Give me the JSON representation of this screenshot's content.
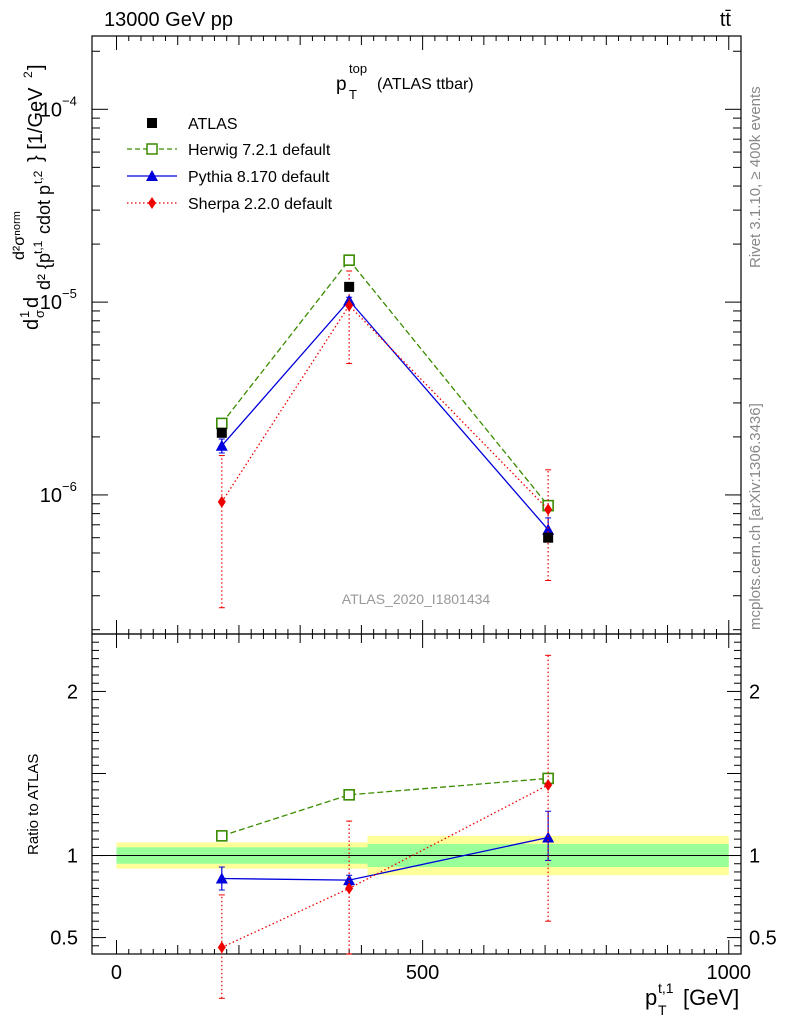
{
  "header": {
    "left": "13000 GeV pp",
    "right": "tt̄"
  },
  "title": {
    "main": "p",
    "sub": "T",
    "sup": "top",
    "suffix": "(ATLAS ttbar)"
  },
  "side": {
    "rivet": "Rivet 3.1.10, ≥ 400k events",
    "mcplots": "mcplots.cern.ch [arXiv:1306.3436]"
  },
  "analysis_id": "ATLAS_2020_I1801434",
  "colors": {
    "atlas": "#000000",
    "herwig": "#3a8c00",
    "pythia": "#0000dd",
    "sherpa": "#ee0000",
    "band_inner": "#99ff99",
    "band_outer": "#ffff99"
  },
  "chart_data": [
    {
      "type": "scatter",
      "panel": "main",
      "yscale": "log",
      "ylabel": "d²σ/(d p_T^{t,1} d p_T^{t,2}) · 1/σ [1/GeV²]",
      "ylabel_parts": {
        "d2sig": "d²σⁿᵒʳᵐ",
        "denom": "d² {p",
        "denom_sup": "t,1",
        "denom_mid": "cdot p",
        "denom_sup2": "t,2",
        "frac": "1",
        "sigma": "σ",
        "d": "d",
        "unit": "} [1/GeV",
        "unit_sup": "2",
        "unit_end": "]"
      },
      "xlim": [
        -40,
        1020
      ],
      "ylim": [
        1.9e-07,
        0.00024
      ],
      "yticks": [
        {
          "v": 1e-06,
          "base": "10",
          "exp": "−6"
        },
        {
          "v": 1e-05,
          "base": "10",
          "exp": "−5"
        },
        {
          "v": 0.0001,
          "base": "10",
          "exp": "−4"
        }
      ],
      "series": [
        {
          "name": "ATLAS",
          "x": [
            172,
            380,
            705
          ],
          "y": [
            2.1e-06,
            1.2e-05,
            6e-07
          ],
          "yerr_lo": [
            2e-06,
            1.15e-05,
            5.8e-07
          ],
          "yerr_hi": [
            2.2e-06,
            1.25e-05,
            6.2e-07
          ]
        },
        {
          "name": "Herwig 7.2.1 default",
          "x": [
            172,
            380,
            705
          ],
          "y": [
            2.35e-06,
            1.65e-05,
            8.8e-07
          ],
          "yerr_lo": [
            2.3e-06,
            1.6e-05,
            8.7e-07
          ],
          "yerr_hi": [
            2.4e-06,
            1.7e-05,
            8.9e-07
          ]
        },
        {
          "name": "Pythia 8.170 default",
          "x": [
            172,
            380,
            705
          ],
          "y": [
            1.8e-06,
            1.02e-05,
            6.6e-07
          ],
          "yerr_lo": [
            1.65e-06,
            9.8e-06,
            5.9e-07
          ],
          "yerr_hi": [
            1.95e-06,
            1.06e-05,
            7.6e-07
          ]
        },
        {
          "name": "Sherpa 2.2.0 default",
          "x": [
            172,
            380,
            705
          ],
          "y": [
            9.2e-07,
            9.6e-06,
            8.4e-07
          ],
          "yerr_lo": [
            2.6e-07,
            4.8e-06,
            3.6e-07
          ],
          "yerr_hi": [
            1.6e-06,
            1.45e-05,
            1.35e-06
          ]
        }
      ]
    },
    {
      "type": "scatter",
      "panel": "ratio",
      "ylabel": "Ratio to ATLAS",
      "xlabel": "p_T^{t,1} [GeV]",
      "xlabel_parts": {
        "p": "p",
        "sub": "T",
        "sup": "t,1",
        "unit": "[GeV]"
      },
      "xlim": [
        -40,
        1020
      ],
      "ylim": [
        0.4,
        2.35
      ],
      "xticks": [
        {
          "v": 0,
          "label": "0"
        },
        {
          "v": 500,
          "label": "500"
        },
        {
          "v": 1000,
          "label": "1000"
        }
      ],
      "yticks": [
        {
          "v": 0.5,
          "label": "0.5"
        },
        {
          "v": 1,
          "label": "1"
        },
        {
          "v": 2,
          "label": "2"
        }
      ],
      "bands": [
        {
          "x0": 0,
          "x1": 410,
          "inner": [
            0.95,
            1.05
          ],
          "outer": [
            0.92,
            1.08
          ]
        },
        {
          "x0": 410,
          "x1": 1000,
          "inner": [
            0.93,
            1.07
          ],
          "outer": [
            0.88,
            1.12
          ]
        }
      ],
      "series": [
        {
          "name": "Herwig 7.2.1 default",
          "x": [
            172,
            380,
            705
          ],
          "y": [
            1.12,
            1.37,
            1.47
          ],
          "yerr_lo": [
            1.09,
            1.35,
            1.44
          ],
          "yerr_hi": [
            1.15,
            1.39,
            1.5
          ]
        },
        {
          "name": "Pythia 8.170 default",
          "x": [
            172,
            380,
            705
          ],
          "y": [
            0.86,
            0.85,
            1.11
          ],
          "yerr_lo": [
            0.79,
            0.82,
            0.97
          ],
          "yerr_hi": [
            0.93,
            0.88,
            1.27
          ]
        },
        {
          "name": "Sherpa 2.2.0 default",
          "x": [
            172,
            380,
            705
          ],
          "y": [
            0.44,
            0.8,
            1.43
          ],
          "yerr_lo": [
            0.13,
            0.4,
            0.6
          ],
          "yerr_hi": [
            0.76,
            1.21,
            2.22
          ]
        }
      ]
    }
  ]
}
